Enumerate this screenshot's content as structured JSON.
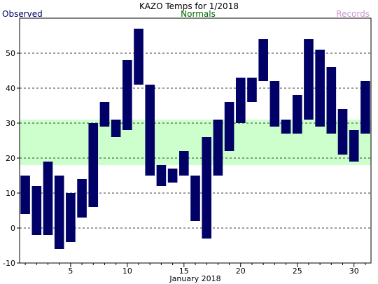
{
  "chart_data": {
    "type": "bar",
    "title": "KAZO Temps for 1/2018",
    "xlabel": "January 2018",
    "ylabel": "",
    "ylim": [
      -10,
      60
    ],
    "xlim": [
      0.5,
      31.5
    ],
    "yticks": [
      -10,
      0,
      10,
      20,
      30,
      40,
      50
    ],
    "xticks": [
      5,
      10,
      15,
      20,
      25,
      30
    ],
    "grid": true,
    "legend": [
      "Observed",
      "Normals",
      "Records"
    ],
    "normals_band": [
      18,
      31
    ],
    "days": [
      1,
      2,
      3,
      4,
      5,
      6,
      7,
      8,
      9,
      10,
      11,
      12,
      13,
      14,
      15,
      16,
      17,
      18,
      19,
      20,
      21,
      22,
      23,
      24,
      25,
      26,
      27,
      28,
      29,
      30,
      31
    ],
    "series": [
      {
        "name": "Observed",
        "low": [
          4,
          -2,
          -2,
          -6,
          -4,
          3,
          6,
          29,
          26,
          28,
          41,
          15,
          12,
          13,
          15,
          2,
          -3,
          15,
          22,
          30,
          36,
          42,
          29,
          27,
          27,
          31,
          29,
          27,
          21,
          19,
          27
        ],
        "high": [
          15,
          12,
          19,
          15,
          10,
          14,
          30,
          36,
          31,
          48,
          57,
          41,
          18,
          17,
          22,
          15,
          26,
          31,
          36,
          43,
          43,
          54,
          42,
          31,
          38,
          54,
          51,
          46,
          34,
          28,
          42
        ]
      }
    ],
    "colors": {
      "observed": "#000066",
      "normals_band": "#ccffcc",
      "normals_text": "#006600",
      "records_text": "#cc99cc",
      "title": "#000000",
      "grid": "#000000"
    }
  }
}
